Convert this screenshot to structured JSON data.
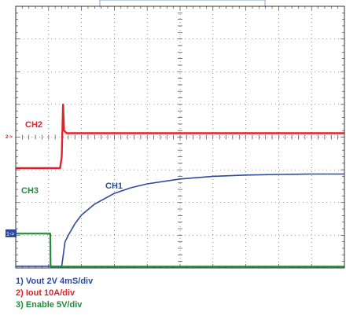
{
  "colors": {
    "ch1": "#2c4a9c",
    "ch2": "#e3212b",
    "ch3": "#1f8a3b",
    "grid": "#444444",
    "frame": "#333333",
    "background": "#ffffff"
  },
  "chart_data": {
    "type": "line",
    "title": "",
    "xlabel": "",
    "ylabel": "",
    "grid": true,
    "x_divisions": 10,
    "y_divisions": 8,
    "xlim": [
      0,
      10
    ],
    "ylim": [
      0,
      8
    ],
    "series": [
      {
        "name": "CH1",
        "channel": 1,
        "label": "CH1",
        "marker": "1->",
        "x": [
          0,
          1.05,
          1.4,
          1.5,
          1.6,
          1.8,
          2.0,
          2.4,
          3.0,
          3.5,
          4.0,
          5.0,
          6.0,
          7.0,
          8.0,
          9.0,
          10.0
        ],
        "y": [
          0.05,
          0.05,
          0.05,
          0.8,
          1.0,
          1.35,
          1.62,
          1.95,
          2.28,
          2.45,
          2.57,
          2.72,
          2.8,
          2.84,
          2.86,
          2.87,
          2.87
        ]
      },
      {
        "name": "CH2",
        "channel": 2,
        "label": "CH2",
        "marker": "2->",
        "x": [
          0,
          1.35,
          1.4,
          1.44,
          1.47,
          1.55,
          10.0
        ],
        "y": [
          3.05,
          3.05,
          3.4,
          5.0,
          4.2,
          4.12,
          4.12
        ]
      },
      {
        "name": "CH3",
        "channel": 3,
        "label": "CH3",
        "x": [
          0,
          1.05,
          1.06,
          10.0
        ],
        "y": [
          1.05,
          1.05,
          0.04,
          0.04
        ]
      }
    ]
  },
  "labels": {
    "ch1": "CH1",
    "ch2": "CH2",
    "ch3": "CH3",
    "marker1": "1->",
    "marker2": "2->"
  },
  "legend": {
    "line1": "1) Vout 2V 4mS/div",
    "line2": "2) Iout 10A/div",
    "line3": "3) Enable 5V/div"
  }
}
